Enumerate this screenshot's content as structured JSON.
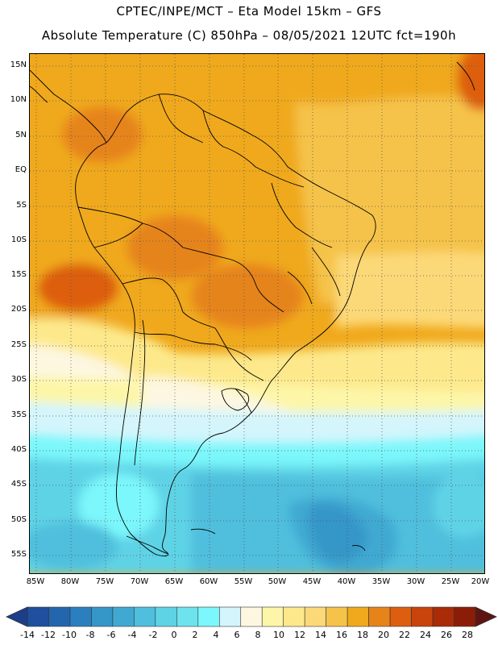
{
  "header": {
    "title_line1": "CPTEC/INPE/MCT –  Eta Model 15km – GFS",
    "title_line2": "Absolute Temperature (C) 850hPa – 08/05/2021 12UTC fct=190h"
  },
  "map": {
    "lat_labels": [
      "15N",
      "10N",
      "5N",
      "EQ",
      "5S",
      "10S",
      "15S",
      "20S",
      "25S",
      "30S",
      "35S",
      "40S",
      "45S",
      "50S",
      "55S"
    ],
    "lon_labels": [
      "85W",
      "80W",
      "75W",
      "70W",
      "65W",
      "60W",
      "55W",
      "50W",
      "45W",
      "40W",
      "35W",
      "30W",
      "25W",
      "20W"
    ]
  },
  "colorbar": {
    "labels": [
      "-14",
      "-12",
      "-10",
      "-8",
      "-6",
      "-4",
      "-2",
      "0",
      "2",
      "4",
      "6",
      "8",
      "10",
      "12",
      "14",
      "16",
      "18",
      "20",
      "22",
      "24",
      "26",
      "28"
    ],
    "colors": [
      "#1c3e8a",
      "#1f4f9e",
      "#2366ae",
      "#2b7fbe",
      "#3596c8",
      "#40a9d2",
      "#4fbfdd",
      "#5fd3e6",
      "#6de3ee",
      "#7cf7fb",
      "#d4f5fc",
      "#fdf7e1",
      "#fdf6a8",
      "#fde98c",
      "#fcd978",
      "#f5c34a",
      "#f0a91c",
      "#e6841a",
      "#dd5e10",
      "#c9430c",
      "#a92b08",
      "#8b1d08",
      "#5e1512"
    ]
  }
}
